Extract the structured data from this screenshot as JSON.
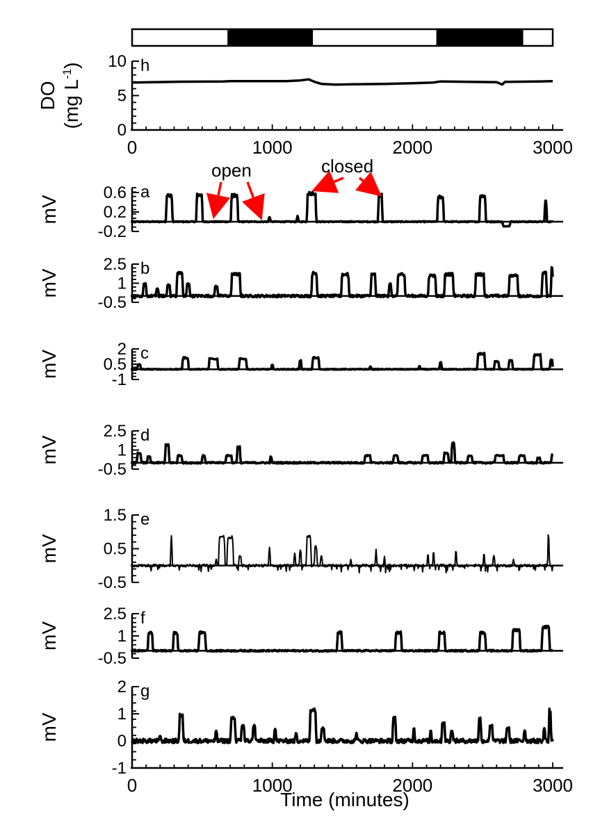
{
  "chart_data": {
    "type": "line",
    "xlabel": "Time (minutes)",
    "xlim": [
      0,
      3000
    ],
    "xticks": [
      0,
      1000,
      2000,
      3000
    ],
    "light_bar": {
      "description_blocks": [
        {
          "start": 0,
          "end": 680,
          "state": "light"
        },
        {
          "start": 680,
          "end": 1290,
          "state": "dark"
        },
        {
          "start": 1290,
          "end": 2170,
          "state": "light"
        },
        {
          "start": 2170,
          "end": 2790,
          "state": "dark"
        },
        {
          "start": 2790,
          "end": 3000,
          "state": "light"
        }
      ],
      "light_color": "#ffffff",
      "dark_color": "#000000"
    },
    "annotations": {
      "open": {
        "text": "open",
        "color": "#ff0000",
        "points_to_x": [
          610,
          880
        ]
      },
      "closed": {
        "text": "closed",
        "color": "#ff0000",
        "points_to_x": [
          1290,
          1770
        ]
      }
    },
    "panels": [
      {
        "id": "h",
        "ylabel_line1": "DO",
        "ylabel_line2": "(mg L",
        "ylabel_sup": "-1",
        "ylabel_close": ")",
        "ylim": [
          0,
          10
        ],
        "yticks": [
          0,
          5,
          10
        ],
        "ytick_labels": [
          "0",
          "5",
          "10"
        ],
        "xtick_labels": [
          "0",
          "1000",
          "2000",
          "3000"
        ],
        "line_width": 3.5,
        "series": [
          {
            "x": [
              0,
              300,
              650,
              700,
              1100,
              1200,
              1260,
              1300,
              1350,
              1450,
              1600,
              1800,
              2000,
              2150,
              2200,
              2400,
              2600,
              2640,
              2660,
              2700,
              2900,
              3000
            ],
            "y": [
              6.9,
              7.0,
              7.05,
              7.1,
              7.1,
              7.2,
              7.35,
              7.0,
              6.7,
              6.6,
              6.65,
              6.7,
              6.8,
              6.9,
              7.05,
              7.0,
              6.95,
              6.6,
              7.0,
              7.0,
              7.05,
              7.1
            ]
          }
        ]
      },
      {
        "id": "a",
        "ylabel_line1": "mV",
        "ylim": [
          -0.2,
          0.7
        ],
        "yticks": [
          -0.2,
          0.2,
          0.6
        ],
        "ytick_labels": [
          "-0.2",
          "0.2",
          "0.6"
        ],
        "line_width": 3.5,
        "base": 0.0,
        "noise": 0.01,
        "events": [
          [
            265,
            0.58,
            40
          ],
          [
            480,
            0.58,
            40
          ],
          [
            730,
            0.57,
            45
          ],
          [
            980,
            0.1,
            10
          ],
          [
            1180,
            0.12,
            8
          ],
          [
            1280,
            0.62,
            60
          ],
          [
            1770,
            0.58,
            25
          ],
          [
            2200,
            0.54,
            40
          ],
          [
            2500,
            0.56,
            40
          ],
          [
            2670,
            -0.1,
            50
          ],
          [
            2950,
            0.45,
            12
          ]
        ]
      },
      {
        "id": "b",
        "ylabel_line1": "mV",
        "ylim": [
          -0.5,
          2.5
        ],
        "yticks": [
          -0.5,
          1,
          2.5
        ],
        "ytick_labels": [
          "-0.5",
          "1",
          "2.5"
        ],
        "line_width": 3.5,
        "base": 0.0,
        "noise": 0.1,
        "events": [
          [
            90,
            1.0,
            20
          ],
          [
            180,
            0.6,
            15
          ],
          [
            260,
            0.9,
            20
          ],
          [
            340,
            1.9,
            40
          ],
          [
            400,
            1.0,
            20
          ],
          [
            600,
            0.8,
            20
          ],
          [
            740,
            1.8,
            60
          ],
          [
            1300,
            1.9,
            35
          ],
          [
            1520,
            1.8,
            50
          ],
          [
            1720,
            1.8,
            30
          ],
          [
            1840,
            1.0,
            15
          ],
          [
            1920,
            1.8,
            50
          ],
          [
            2140,
            1.7,
            50
          ],
          [
            2260,
            1.8,
            60
          ],
          [
            2480,
            1.8,
            60
          ],
          [
            2720,
            1.7,
            60
          ],
          [
            2940,
            1.9,
            30
          ],
          [
            2995,
            2.3,
            10
          ]
        ]
      },
      {
        "id": "c",
        "ylabel_line1": "mV",
        "ylim": [
          -1,
          2
        ],
        "yticks": [
          -1,
          0.5,
          2
        ],
        "ytick_labels": [
          "-1",
          "0.5",
          "2"
        ],
        "line_width": 3.5,
        "base": 0.0,
        "noise": 0.04,
        "events": [
          [
            50,
            0.5,
            20
          ],
          [
            380,
            1.2,
            40
          ],
          [
            580,
            1.1,
            60
          ],
          [
            790,
            1.1,
            50
          ],
          [
            1000,
            0.5,
            10
          ],
          [
            1200,
            0.9,
            12
          ],
          [
            1310,
            1.2,
            45
          ],
          [
            1700,
            0.3,
            8
          ],
          [
            2050,
            0.3,
            8
          ],
          [
            2200,
            0.7,
            12
          ],
          [
            2490,
            1.6,
            50
          ],
          [
            2600,
            0.8,
            30
          ],
          [
            2700,
            0.9,
            25
          ],
          [
            2890,
            1.5,
            50
          ],
          [
            2990,
            1.0,
            15
          ]
        ]
      },
      {
        "id": "d",
        "ylabel_line1": "mV",
        "ylim": [
          -0.5,
          2.5
        ],
        "yticks": [
          -0.5,
          1,
          2.5
        ],
        "ytick_labels": [
          "-0.5",
          "1",
          "2.5"
        ],
        "line_width": 3.5,
        "base": 0.0,
        "noise": 0.06,
        "events": [
          [
            50,
            0.8,
            25
          ],
          [
            120,
            0.5,
            20
          ],
          [
            250,
            1.5,
            25
          ],
          [
            340,
            0.6,
            30
          ],
          [
            510,
            0.6,
            20
          ],
          [
            690,
            0.6,
            40
          ],
          [
            760,
            1.3,
            20
          ],
          [
            990,
            0.5,
            10
          ],
          [
            1680,
            0.6,
            40
          ],
          [
            1880,
            0.6,
            30
          ],
          [
            2090,
            0.6,
            40
          ],
          [
            2240,
            0.8,
            30
          ],
          [
            2290,
            1.7,
            20
          ],
          [
            2410,
            0.6,
            30
          ],
          [
            2620,
            0.6,
            60
          ],
          [
            2780,
            0.6,
            40
          ],
          [
            2900,
            0.4,
            20
          ],
          [
            3000,
            0.7,
            15
          ]
        ]
      },
      {
        "id": "e",
        "ylabel_line1": "mV",
        "ylim": [
          -0.5,
          1.5
        ],
        "yticks": [
          -0.5,
          0.5,
          1.5
        ],
        "ytick_labels": [
          "-0.5",
          "0.5",
          "1.5"
        ],
        "line_width": 2.0,
        "base": 0.0,
        "noise": 0.04,
        "dips": true,
        "events": [
          [
            280,
            0.9,
            8
          ],
          [
            600,
            0.2,
            8
          ],
          [
            640,
            0.9,
            40
          ],
          [
            700,
            0.9,
            40
          ],
          [
            770,
            0.3,
            15
          ],
          [
            980,
            0.6,
            8
          ],
          [
            1160,
            0.4,
            8
          ],
          [
            1200,
            0.5,
            10
          ],
          [
            1260,
            0.9,
            30
          ],
          [
            1310,
            0.6,
            15
          ],
          [
            1350,
            0.3,
            10
          ],
          [
            1560,
            0.2,
            6
          ],
          [
            1740,
            0.5,
            6
          ],
          [
            1800,
            0.3,
            6
          ],
          [
            2110,
            0.4,
            6
          ],
          [
            2150,
            0.5,
            6
          ],
          [
            2310,
            0.5,
            6
          ],
          [
            2510,
            0.4,
            6
          ],
          [
            2580,
            0.3,
            10
          ],
          [
            2720,
            0.2,
            6
          ],
          [
            2970,
            1.1,
            6
          ]
        ]
      },
      {
        "id": "f",
        "ylabel_line1": "mV",
        "ylim": [
          -0.5,
          2.5
        ],
        "yticks": [
          -0.5,
          1,
          2.5
        ],
        "ytick_labels": [
          "-0.5",
          "1",
          "2.5"
        ],
        "line_width": 3.5,
        "base": 0.0,
        "noise": 0.05,
        "events": [
          [
            130,
            1.3,
            30
          ],
          [
            310,
            1.3,
            30
          ],
          [
            500,
            1.3,
            45
          ],
          [
            1480,
            1.3,
            30
          ],
          [
            1900,
            1.3,
            40
          ],
          [
            2210,
            1.3,
            40
          ],
          [
            2500,
            1.3,
            40
          ],
          [
            2740,
            1.5,
            50
          ],
          [
            2950,
            1.7,
            50
          ]
        ]
      },
      {
        "id": "g",
        "ylabel_line1": "mV",
        "ylim": [
          -1,
          2
        ],
        "yticks": [
          -1,
          0,
          1,
          2
        ],
        "ytick_labels": [
          "-1",
          "0",
          "1",
          "2"
        ],
        "xtick_labels": [
          "0",
          "1000",
          "2000",
          "3000"
        ],
        "line_width": 3.5,
        "base": 0.0,
        "noise": 0.08,
        "events": [
          [
            200,
            0.2,
            10
          ],
          [
            350,
            1.0,
            25
          ],
          [
            600,
            0.4,
            10
          ],
          [
            720,
            0.9,
            30
          ],
          [
            790,
            0.6,
            20
          ],
          [
            870,
            0.6,
            15
          ],
          [
            1020,
            0.5,
            10
          ],
          [
            1170,
            0.3,
            10
          ],
          [
            1290,
            1.2,
            40
          ],
          [
            1360,
            0.5,
            20
          ],
          [
            1600,
            0.3,
            8
          ],
          [
            1870,
            0.9,
            20
          ],
          [
            2010,
            0.5,
            8
          ],
          [
            2130,
            0.4,
            8
          ],
          [
            2220,
            0.7,
            20
          ],
          [
            2280,
            0.4,
            15
          ],
          [
            2480,
            0.9,
            15
          ],
          [
            2560,
            0.6,
            20
          ],
          [
            2680,
            0.5,
            20
          ],
          [
            2800,
            0.4,
            10
          ],
          [
            2940,
            0.5,
            10
          ],
          [
            2980,
            1.2,
            12
          ]
        ]
      }
    ]
  }
}
